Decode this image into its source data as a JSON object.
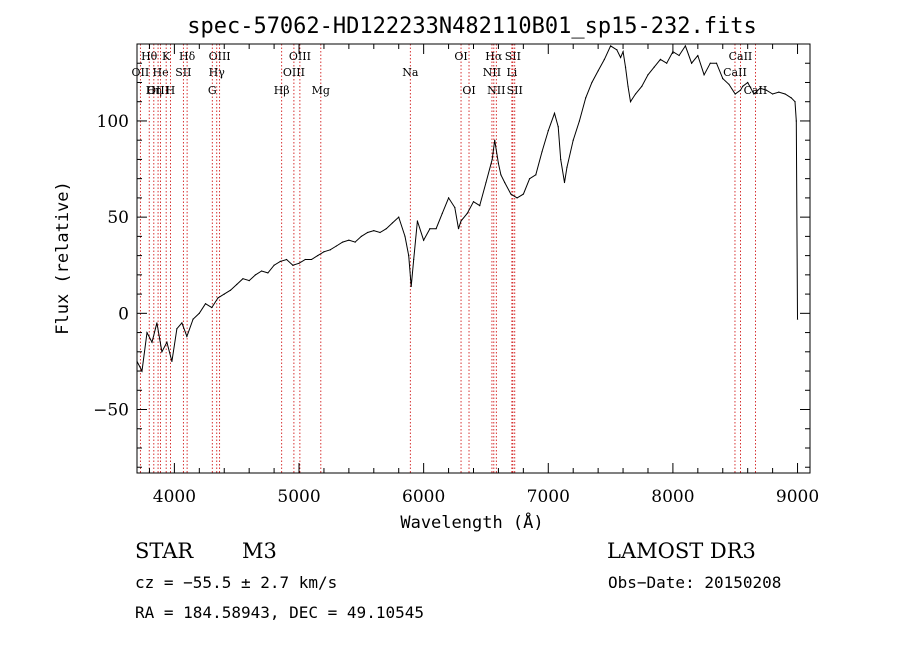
{
  "chart_data": {
    "type": "line",
    "title": "spec-57062-HD122233N482110B01_sp15-232.fits",
    "xlabel": "Wavelength (Å)",
    "ylabel": "Flux (relative)",
    "xlim": [
      3700,
      9100
    ],
    "ylim": [
      -83,
      140
    ],
    "x_ticks": [
      4000,
      5000,
      6000,
      7000,
      8000,
      9000
    ],
    "x_tick_labels": [
      "4000",
      "5000",
      "6000",
      "7000",
      "8000",
      "9000"
    ],
    "y_ticks": [
      -50,
      0,
      50,
      100
    ],
    "y_tick_labels": [
      "−50",
      "0",
      "50",
      "100"
    ],
    "series": [
      {
        "name": "spectrum",
        "color": "#000000",
        "x": [
          3700,
          3740,
          3780,
          3820,
          3860,
          3900,
          3940,
          3980,
          4020,
          4060,
          4100,
          4150,
          4200,
          4250,
          4300,
          4350,
          4400,
          4450,
          4500,
          4550,
          4600,
          4650,
          4700,
          4750,
          4800,
          4850,
          4900,
          4950,
          5000,
          5050,
          5100,
          5150,
          5200,
          5250,
          5300,
          5350,
          5400,
          5450,
          5500,
          5550,
          5600,
          5650,
          5700,
          5750,
          5800,
          5850,
          5880,
          5900,
          5920,
          5950,
          6000,
          6050,
          6100,
          6150,
          6200,
          6250,
          6280,
          6300,
          6350,
          6400,
          6450,
          6500,
          6550,
          6570,
          6600,
          6620,
          6650,
          6700,
          6750,
          6800,
          6850,
          6900,
          6950,
          7000,
          7050,
          7080,
          7100,
          7130,
          7150,
          7200,
          7250,
          7300,
          7350,
          7400,
          7450,
          7500,
          7550,
          7580,
          7600,
          7620,
          7640,
          7660,
          7700,
          7750,
          7800,
          7850,
          7900,
          7950,
          8000,
          8050,
          8100,
          8150,
          8200,
          8250,
          8300,
          8350,
          8400,
          8450,
          8500,
          8542,
          8560,
          8600,
          8650,
          8700,
          8750,
          8800,
          8850,
          8900,
          8950,
          8980,
          8990,
          9000
        ],
        "y": [
          -25,
          -30,
          -10,
          -15,
          -5,
          -20,
          -15,
          -25,
          -8,
          -5,
          -12,
          -3,
          0,
          5,
          3,
          8,
          10,
          12,
          15,
          18,
          17,
          20,
          22,
          21,
          25,
          27,
          28,
          25,
          26,
          28,
          28,
          30,
          32,
          33,
          35,
          37,
          38,
          37,
          40,
          42,
          43,
          42,
          44,
          47,
          50,
          40,
          30,
          14,
          28,
          48,
          38,
          44,
          44,
          52,
          60,
          55,
          44,
          48,
          52,
          58,
          56,
          68,
          80,
          90,
          78,
          72,
          68,
          62,
          60,
          62,
          70,
          72,
          84,
          95,
          104,
          97,
          80,
          68,
          76,
          90,
          100,
          112,
          120,
          126,
          132,
          139,
          137,
          133,
          136,
          128,
          118,
          110,
          114,
          118,
          124,
          128,
          132,
          130,
          136,
          134,
          139,
          130,
          134,
          124,
          130,
          130,
          122,
          119,
          114,
          116,
          118,
          120,
          114,
          117,
          116,
          114,
          115,
          114,
          112,
          110,
          100,
          -3
        ]
      }
    ],
    "spectral_lines": [
      {
        "name": "Hθ",
        "x": 3798,
        "row": 1
      },
      {
        "name": "OII",
        "x": 3727,
        "row": 2
      },
      {
        "name": "OIII",
        "x": 3869,
        "row": 3
      },
      {
        "name": "Hη",
        "x": 3835,
        "row": 3
      },
      {
        "name": "He",
        "x": 3889,
        "row": 2
      },
      {
        "name": "K",
        "x": 3934,
        "row": 1
      },
      {
        "name": "H",
        "x": 3968,
        "row": 3
      },
      {
        "name": "Hδ",
        "x": 4102,
        "row": 1
      },
      {
        "name": "SII",
        "x": 4072,
        "row": 2
      },
      {
        "name": "OIII",
        "x": 4363,
        "row": 1
      },
      {
        "name": "Hγ",
        "x": 4340,
        "row": 2
      },
      {
        "name": "G",
        "x": 4304,
        "row": 3
      },
      {
        "name": "OIII",
        "x": 5007,
        "row": 1
      },
      {
        "name": "OIII",
        "x": 4959,
        "row": 2
      },
      {
        "name": "Hβ",
        "x": 4861,
        "row": 3
      },
      {
        "name": "Mg",
        "x": 5175,
        "row": 3
      },
      {
        "name": "Na",
        "x": 5893,
        "row": 2
      },
      {
        "name": "OI",
        "x": 6300,
        "row": 1
      },
      {
        "name": "OI",
        "x": 6364,
        "row": 3
      },
      {
        "name": "Hα",
        "x": 6563,
        "row": 1
      },
      {
        "name": "NII",
        "x": 6548,
        "row": 2
      },
      {
        "name": "NII",
        "x": 6583,
        "row": 3
      },
      {
        "name": "SII",
        "x": 6716,
        "row": 1
      },
      {
        "name": "Li",
        "x": 6708,
        "row": 2
      },
      {
        "name": "SII",
        "x": 6731,
        "row": 3
      },
      {
        "name": "CaII",
        "x": 8542,
        "row": 1
      },
      {
        "name": "CaII",
        "x": 8498,
        "row": 2
      },
      {
        "name": "CaII",
        "x": 8662,
        "row": 3
      }
    ],
    "colors": {
      "axis": "#000000",
      "series": "#000000",
      "lines": "#cc0000"
    },
    "grid": false,
    "legend": "none"
  },
  "info": {
    "object_class": "STAR",
    "subclass": "M3",
    "survey": "LAMOST DR3",
    "cz": "cz = −55.5 ± 2.7 km/s",
    "obs_date": "Obs−Date: 20150208",
    "coords": "RA = 184.58943, DEC =  49.10545"
  }
}
